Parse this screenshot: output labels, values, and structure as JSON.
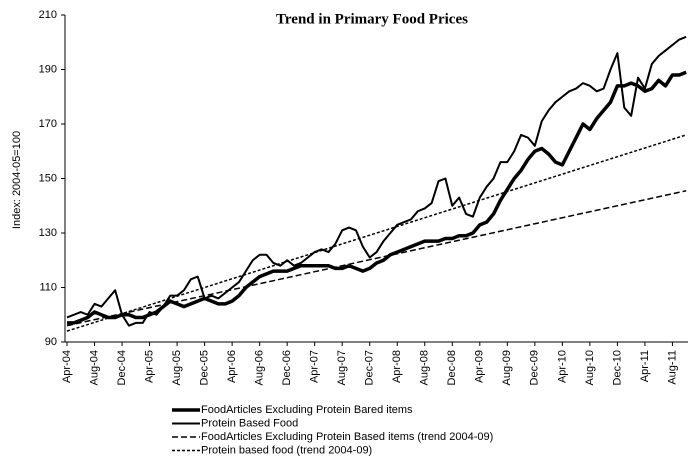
{
  "chart_data": {
    "type": "line",
    "title": "Trend in Primary Food Prices",
    "y_label": "Index: 2004-05=100",
    "ylim": [
      90,
      210
    ],
    "yticks": [
      90,
      110,
      130,
      150,
      170,
      190,
      210
    ],
    "categories": [
      "Apr-04",
      null,
      null,
      null,
      "Aug-04",
      null,
      null,
      null,
      "Dec-04",
      null,
      null,
      null,
      "Apr-05",
      null,
      null,
      null,
      "Aug-05",
      null,
      null,
      null,
      "Dec-05",
      null,
      null,
      null,
      "Apr-06",
      null,
      null,
      null,
      "Aug-06",
      null,
      null,
      null,
      "Dec-06",
      null,
      null,
      null,
      "Apr-07",
      null,
      null,
      null,
      "Aug-07",
      null,
      null,
      null,
      "Dec-07",
      null,
      null,
      null,
      "Apr-08",
      null,
      null,
      null,
      "Aug-08",
      null,
      null,
      null,
      "Dec-08",
      null,
      null,
      null,
      "Apr-09",
      null,
      null,
      null,
      "Aug-09",
      null,
      null,
      null,
      "Dec-09",
      null,
      null,
      null,
      "Apr-10",
      null,
      null,
      null,
      "Aug-10",
      null,
      null,
      null,
      "Dec-10",
      null,
      null,
      null,
      "Apr-11",
      null,
      null,
      null,
      "Aug-11",
      null,
      null
    ],
    "series": [
      {
        "name": "FoodArticles Excluding Protein Bared items",
        "color": "#000000",
        "linewidth": 3.5,
        "style": "solid",
        "values": [
          97,
          97,
          98,
          99,
          101,
          100,
          99,
          99,
          100,
          100,
          99,
          99,
          100,
          101,
          103,
          105,
          104,
          103,
          104,
          105,
          106,
          105,
          104,
          104,
          105,
          107,
          110,
          112,
          114,
          115,
          116,
          116,
          116,
          117,
          118,
          118,
          118,
          118,
          118,
          117,
          117,
          118,
          117,
          116,
          117,
          119,
          120,
          122,
          123,
          124,
          125,
          126,
          127,
          127,
          127,
          128,
          128,
          129,
          129,
          130,
          133,
          134,
          137,
          142,
          146,
          150,
          153,
          157,
          160,
          161,
          159,
          156,
          155,
          160,
          165,
          170,
          168,
          172,
          175,
          178,
          184,
          184,
          185,
          184,
          182,
          183,
          186,
          184,
          188,
          188,
          189
        ]
      },
      {
        "name": "Protein Based Food",
        "color": "#000000",
        "linewidth": 2,
        "style": "solid",
        "values": [
          99,
          100,
          101,
          100,
          104,
          103,
          106,
          109,
          100,
          96,
          97,
          97,
          101,
          100,
          103,
          107,
          107,
          109,
          113,
          114,
          106,
          107,
          106,
          108,
          110,
          112,
          116,
          120,
          122,
          122,
          119,
          118,
          120,
          118,
          119,
          121,
          123,
          124,
          123,
          126,
          131,
          132,
          131,
          125,
          121,
          123,
          127,
          130,
          133,
          134,
          135,
          138,
          139,
          141,
          149,
          150,
          140,
          143,
          137,
          136,
          143,
          147,
          150,
          156,
          156,
          160,
          166,
          165,
          162,
          171,
          175,
          178,
          180,
          182,
          183,
          185,
          184,
          182,
          183,
          190,
          196,
          176,
          173,
          187,
          183,
          192,
          195,
          197,
          199,
          201,
          202
        ]
      },
      {
        "name": "FoodArticles Excluding Protein Based items (trend 2004-09)",
        "color": "#000000",
        "linewidth": 1.5,
        "style": "dashed",
        "values": [
          96,
          96.55,
          97.1,
          97.65,
          98.2,
          98.75,
          99.3,
          99.85,
          100.4,
          100.95,
          101.5,
          102.05,
          102.6,
          103.15,
          103.7,
          104.25,
          104.8,
          105.35,
          105.9,
          106.45,
          107,
          107.55,
          108.1,
          108.65,
          109.2,
          109.75,
          110.3,
          110.85,
          111.4,
          111.95,
          112.5,
          113.05,
          113.6,
          114.15,
          114.7,
          115.25,
          115.8,
          116.35,
          116.9,
          117.45,
          118,
          118.55,
          119.1,
          119.65,
          120.2,
          120.75,
          121.3,
          121.85,
          122.4,
          122.95,
          123.5,
          124.05,
          124.6,
          125.15,
          125.7,
          126.25,
          126.8,
          127.35,
          127.9,
          128.45,
          129,
          129.55,
          130.1,
          130.65,
          131.2,
          131.75,
          132.3,
          132.85,
          133.4,
          133.95,
          134.5,
          135.05,
          135.6,
          136.15,
          136.7,
          137.25,
          137.8,
          138.35,
          138.9,
          139.45,
          140,
          140.55,
          141.1,
          141.65,
          142.2,
          142.75,
          143.3,
          143.85,
          144.4,
          144.95,
          145.5
        ]
      },
      {
        "name": "Protein based food (trend 2004-09)",
        "color": "#000000",
        "linewidth": 1.5,
        "style": "dotted",
        "values": [
          94,
          94.8,
          95.6,
          96.4,
          97.2,
          98,
          98.8,
          99.6,
          100.4,
          101.2,
          102,
          102.8,
          103.6,
          104.4,
          105.2,
          106,
          106.8,
          107.6,
          108.4,
          109.2,
          110,
          110.8,
          111.6,
          112.4,
          113.2,
          114,
          114.8,
          115.6,
          116.4,
          117.2,
          118,
          118.8,
          119.6,
          120.4,
          121.2,
          122,
          122.8,
          123.6,
          124.4,
          125.2,
          126,
          126.8,
          127.6,
          128.4,
          129.2,
          130,
          130.8,
          131.6,
          132.4,
          133.2,
          134,
          134.8,
          135.6,
          136.4,
          137.2,
          138,
          138.8,
          139.6,
          140.4,
          141.2,
          142,
          142.8,
          143.6,
          144.4,
          145.2,
          146,
          146.8,
          147.6,
          148.4,
          149.2,
          150,
          150.8,
          151.6,
          152.4,
          153.2,
          154,
          154.8,
          155.6,
          156.4,
          157.2,
          158,
          158.8,
          159.6,
          160.4,
          161.2,
          162,
          162.8,
          163.6,
          164.4,
          165.2,
          166
        ]
      }
    ]
  }
}
